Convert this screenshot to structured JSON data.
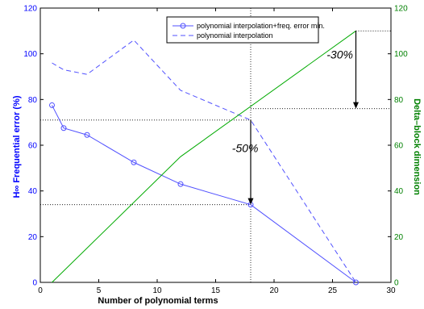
{
  "chart_data": {
    "type": "line",
    "xlabel": "Number of polynomial terms",
    "ylabel_left": "H∞ Frequential error (%)",
    "ylabel_right": "Delta–block dimension",
    "xlim": [
      0,
      30
    ],
    "ylim_left": [
      0,
      120
    ],
    "ylim_right": [
      0,
      120
    ],
    "xticks": [
      0,
      5,
      10,
      15,
      20,
      25,
      30
    ],
    "yticks_left": [
      0,
      20,
      40,
      60,
      80,
      100,
      120
    ],
    "yticks_right": [
      0,
      20,
      40,
      60,
      80,
      100,
      120
    ],
    "grid": false,
    "legend_position": "top",
    "colors": {
      "left_axis": "#0000ff",
      "right_axis": "#008000",
      "series_blue": "#5050ff",
      "series_green": "#00aa00"
    },
    "series": [
      {
        "name": "polynomial interpolation+freq. error min.",
        "axis": "left",
        "style": "solid-circle",
        "x": [
          1,
          2,
          4,
          8,
          12,
          18,
          27
        ],
        "y": [
          77.5,
          67.5,
          64.5,
          52.5,
          43,
          34,
          0
        ]
      },
      {
        "name": "polynomial interpolation",
        "axis": "left",
        "style": "dashed",
        "x": [
          1,
          2,
          4,
          8,
          12,
          18,
          27
        ],
        "y": [
          96,
          93,
          91,
          106,
          84,
          71,
          0
        ]
      },
      {
        "name": "",
        "axis": "right",
        "style": "solid",
        "x": [
          1,
          12,
          27
        ],
        "y": [
          0,
          55,
          110
        ]
      }
    ],
    "annotations": [
      {
        "text": "-50%",
        "x": 18,
        "from_y": 71,
        "to_y": 34,
        "label_x": 16.4,
        "label_y": 57
      },
      {
        "text": "-30%",
        "x": 27,
        "from_y": 110,
        "to_y": 76,
        "label_x": 24.5,
        "label_y": 98
      }
    ],
    "reference_lines": {
      "vertical_x": 18,
      "h_left": [
        {
          "y": 71,
          "to_x": 18
        },
        {
          "y": 34,
          "to_x": 18
        }
      ],
      "h_right": [
        {
          "y": 110,
          "from_x": 27
        },
        {
          "y": 76,
          "from_x": 18
        }
      ]
    }
  }
}
